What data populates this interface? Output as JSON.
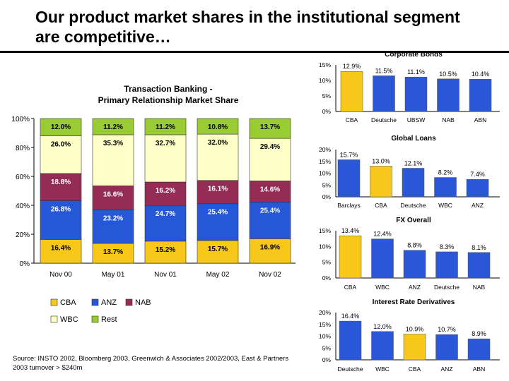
{
  "page": {
    "title": "Our product market shares in the institutional segment are competitive…",
    "source": "Source: INSTO 2002, Bloomberg 2003, Greenwich & Associates 2002/2003, East & Partners 2003 turnover > $240m"
  },
  "colors": {
    "CBA": "#f7c719",
    "ANZ": "#2657d6",
    "NAB": "#952c56",
    "WBC": "#ffffc8",
    "Rest": "#99cc33",
    "bar_blue": "#2a57d8",
    "bar_yellow": "#f7c719"
  },
  "chart_data": [
    {
      "type": "bar",
      "stacked": true,
      "title": "Transaction Banking - Primary Relationship Market Share",
      "categories": [
        "Nov 00",
        "May 01",
        "Nov 01",
        "May 02",
        "Nov 02"
      ],
      "ylim": [
        0,
        100
      ],
      "yticks": [
        "0%",
        "20%",
        "40%",
        "60%",
        "80%",
        "100%"
      ],
      "series": [
        {
          "name": "CBA",
          "values": [
            16.4,
            13.7,
            15.2,
            15.7,
            16.9
          ],
          "labels": [
            "16.4%",
            "13.7%",
            "15.2%",
            "15.7%",
            "16.9%"
          ]
        },
        {
          "name": "ANZ",
          "values": [
            26.8,
            23.2,
            24.7,
            25.4,
            25.4
          ],
          "labels": [
            "26.8%",
            "23.2%",
            "24.7%",
            "25.4%",
            "25.4%"
          ]
        },
        {
          "name": "NAB",
          "values": [
            18.8,
            16.6,
            16.2,
            16.1,
            14.6
          ],
          "labels": [
            "18.8%",
            "16.6%",
            "16.2%",
            "16.1%",
            "14.6%"
          ]
        },
        {
          "name": "WBC",
          "values": [
            26.0,
            35.3,
            32.7,
            32.0,
            29.4
          ],
          "labels": [
            "26.0%",
            "35.3%",
            "32.7%",
            "32.0%",
            "29.4%"
          ]
        },
        {
          "name": "Rest",
          "values": [
            12.0,
            11.2,
            11.2,
            10.8,
            13.7
          ],
          "labels": [
            "12.0%",
            "11.2%",
            "11.2%",
            "10.8%",
            "13.7%"
          ]
        }
      ],
      "legend": [
        "CBA",
        "ANZ",
        "NAB",
        "WBC",
        "Rest"
      ],
      "legend_position": "bottom"
    },
    {
      "type": "bar",
      "title": "Corporate Bonds",
      "categories": [
        "CBA",
        "Deutsche",
        "UBSW",
        "NAB",
        "ABN"
      ],
      "values": [
        12.9,
        11.5,
        11.1,
        10.5,
        10.4
      ],
      "labels": [
        "12.9%",
        "11.5%",
        "11.1%",
        "10.5%",
        "10.4%"
      ],
      "highlight": "CBA",
      "ylim": [
        0,
        15
      ],
      "yticks": [
        "0%",
        "5%",
        "10%",
        "15%"
      ]
    },
    {
      "type": "bar",
      "title": "Global Loans",
      "categories": [
        "Barclays",
        "CBA",
        "Deutsche",
        "WBC",
        "ANZ"
      ],
      "values": [
        15.7,
        13.0,
        12.1,
        8.2,
        7.4
      ],
      "labels": [
        "15.7%",
        "13.0%",
        "12.1%",
        "8.2%",
        "7.4%"
      ],
      "highlight": "CBA",
      "ylim": [
        0,
        20
      ],
      "yticks": [
        "0%",
        "5%",
        "10%",
        "15%",
        "20%"
      ]
    },
    {
      "type": "bar",
      "title": "FX Overall",
      "categories": [
        "CBA",
        "WBC",
        "ANZ",
        "Deutsche",
        "NAB"
      ],
      "values": [
        13.4,
        12.4,
        8.8,
        8.3,
        8.1
      ],
      "labels": [
        "13.4%",
        "12.4%",
        "8.8%",
        "8.3%",
        "8.1%"
      ],
      "highlight": "CBA",
      "ylim": [
        0,
        15
      ],
      "yticks": [
        "0%",
        "5%",
        "10%",
        "15%"
      ]
    },
    {
      "type": "bar",
      "title": "Interest Rate Derivatives",
      "categories": [
        "Deutsche",
        "WBC",
        "CBA",
        "ANZ",
        "ABN"
      ],
      "values": [
        16.4,
        12.0,
        10.9,
        10.7,
        8.9
      ],
      "labels": [
        "16.4%",
        "12.0%",
        "10.9%",
        "10.7%",
        "8.9%"
      ],
      "highlight": "CBA",
      "ylim": [
        0,
        20
      ],
      "yticks": [
        "0%",
        "5%",
        "10%",
        "15%",
        "20%"
      ]
    }
  ]
}
